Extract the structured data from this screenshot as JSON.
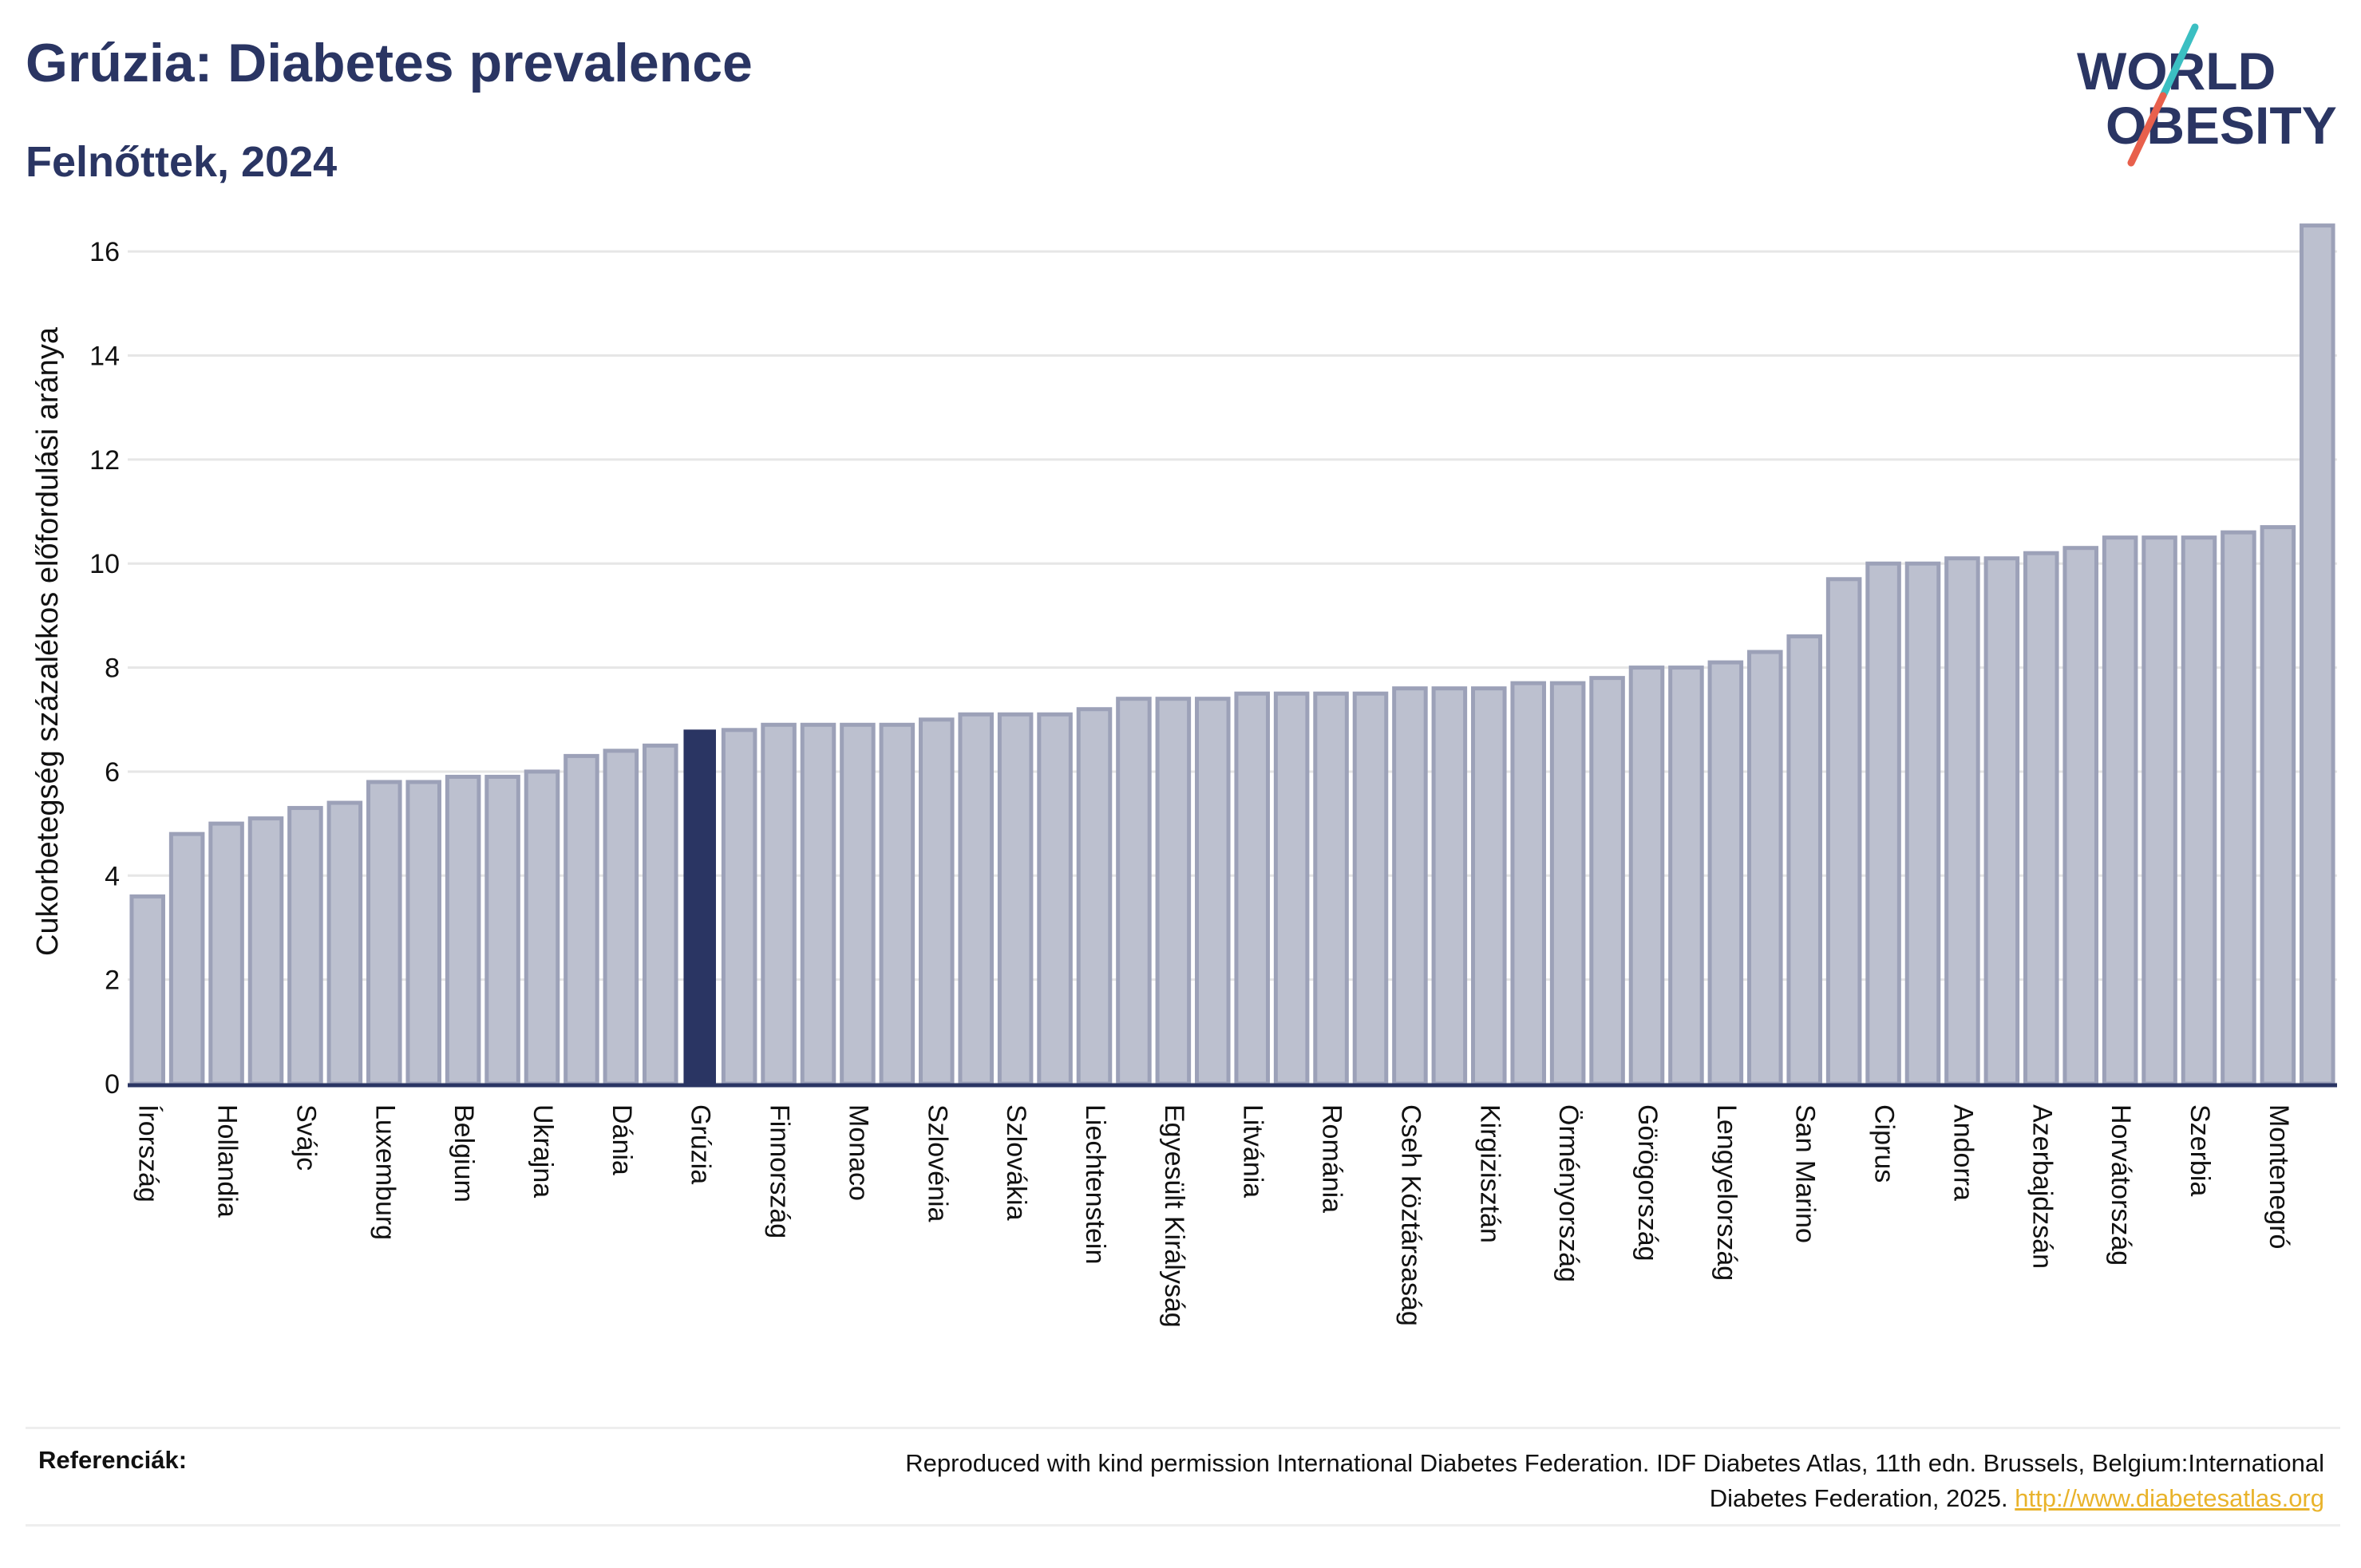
{
  "header": {
    "title": "Grúzia: Diabetes prevalence",
    "subtitle": "Felnőttek, 2024"
  },
  "logo": {
    "line1": "WORLD",
    "line2": "OBESITY",
    "colors": {
      "text": "#2a3563",
      "slash_red": "#e8604c",
      "slash_teal": "#3bbfc2"
    }
  },
  "references": {
    "label": "Referenciák:",
    "text_line1": "Reproduced with kind permission International Diabetes Federation. IDF Diabetes Atlas, 11th edn. Brussels, Belgium:International",
    "text_line2": "Diabetes Federation, 2025.",
    "link": "http://www.diabetesatlas.org"
  },
  "chart_data": {
    "type": "bar",
    "title": "Grúzia: Diabetes prevalence",
    "subtitle": "Felnőttek, 2024",
    "xlabel": "",
    "ylabel": "Cukorbetegség százalékos előfordulási aránya",
    "ylim": [
      0,
      17
    ],
    "yticks": [
      0,
      2,
      4,
      6,
      8,
      10,
      12,
      14,
      16
    ],
    "grid": true,
    "highlight": "Grúzia",
    "colors": {
      "bar": "#bcc0cf",
      "bar_edge": "#9ca1b8",
      "highlight": "#2a3563",
      "axis": "#2a3563",
      "grid": "#e6e6e6"
    },
    "categories": [
      "Írország",
      "",
      "Hollandia",
      "",
      "Svájc",
      "",
      "Luxemburg",
      "",
      "Belgium",
      "",
      "Ukrajna",
      "",
      "Dánia",
      "",
      "Grúzia",
      "",
      "Finnország",
      "",
      "Monaco",
      "",
      "Szlovénia",
      "",
      "Szlovákia",
      "",
      "Liechtenstein",
      "",
      "Egyesült Királyság",
      "",
      "Litvánia",
      "",
      "Románia",
      "",
      "Cseh Köztársaság",
      "",
      "Kirgizisztán",
      "",
      "Örményország",
      "",
      "Görögország",
      "",
      "Lengyelország",
      "",
      "San Marino",
      "",
      "Ciprus",
      "",
      "Andorra",
      "",
      "Azerbajdzsán",
      "",
      "Horvátország",
      "",
      "Szerbia",
      "",
      "Montenegró",
      ""
    ],
    "values": [
      3.6,
      4.8,
      5.0,
      5.1,
      5.3,
      5.4,
      5.8,
      5.8,
      5.9,
      5.9,
      6.0,
      6.3,
      6.4,
      6.5,
      6.8,
      6.8,
      6.9,
      6.9,
      6.9,
      6.9,
      7.0,
      7.1,
      7.1,
      7.1,
      7.2,
      7.4,
      7.4,
      7.4,
      7.5,
      7.5,
      7.5,
      7.5,
      7.6,
      7.6,
      7.6,
      7.7,
      7.7,
      7.8,
      8.0,
      8.0,
      8.1,
      8.3,
      8.6,
      9.7,
      10.0,
      10.0,
      10.1,
      10.1,
      10.2,
      10.3,
      10.5,
      10.5,
      10.5,
      10.6,
      10.7,
      16.5
    ]
  }
}
